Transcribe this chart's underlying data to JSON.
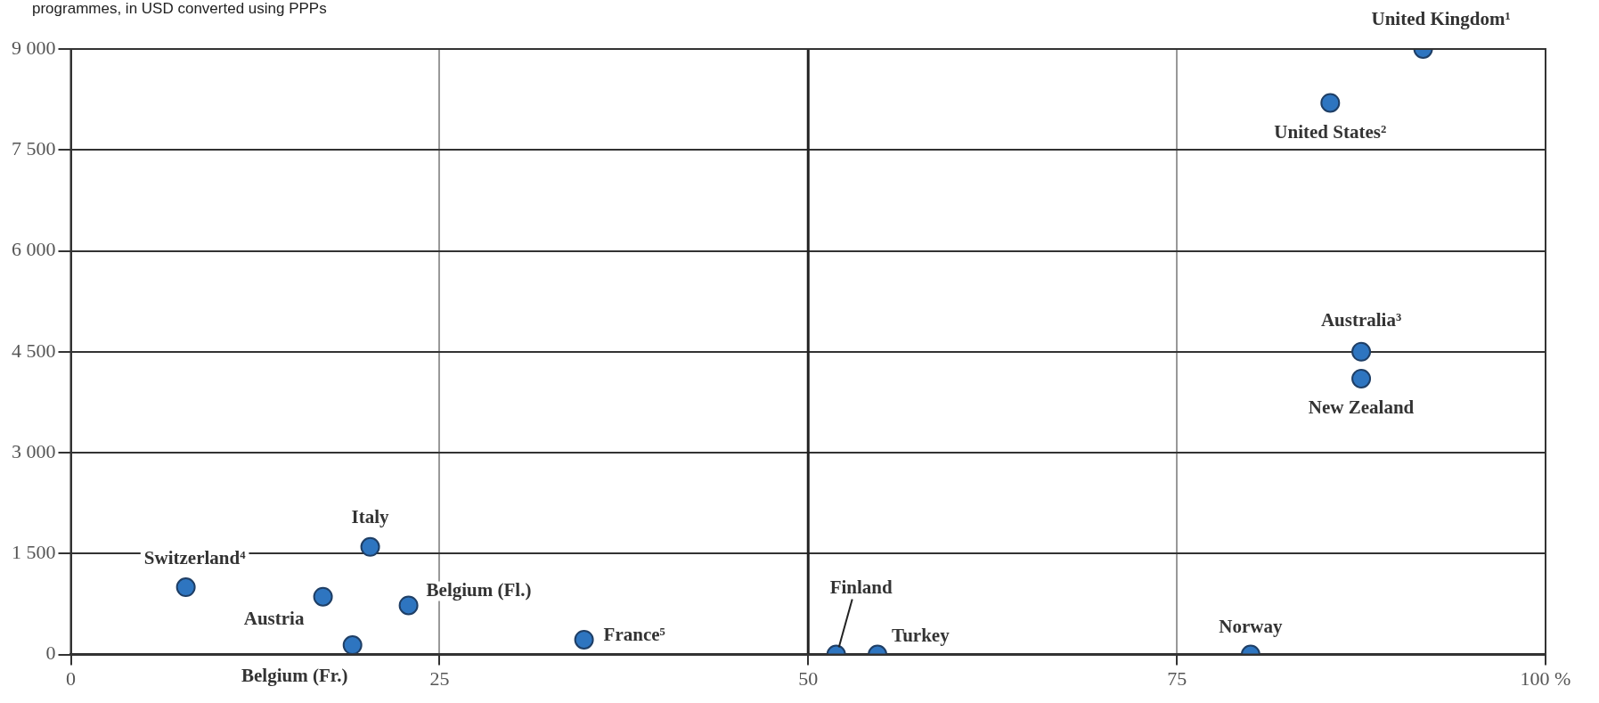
{
  "chart_data": {
    "type": "scatter",
    "title": "programmes, in USD converted using PPPs",
    "x": [
      91.7,
      85.4,
      87.5,
      87.5,
      7.8,
      20.3,
      17.1,
      22.9,
      19.1,
      34.8,
      51.9,
      54.7,
      80.0
    ],
    "values": [
      9000,
      8200,
      4500,
      4100,
      1000,
      1600,
      860,
      730,
      140,
      220,
      0,
      0,
      0
    ],
    "color": "#2e75c0",
    "marker": "circle",
    "xlim": [
      0,
      100
    ],
    "xticks": [
      0,
      25,
      50,
      75,
      {
        "value": 100,
        "label": "100 %"
      }
    ],
    "ylim": [
      0,
      9000
    ],
    "yticks": [
      {
        "value": 0,
        "label": "0"
      },
      {
        "value": 1500,
        "label": "1 500"
      },
      {
        "value": 3000,
        "label": "3 000"
      },
      {
        "value": 4500,
        "label": "4 500"
      },
      {
        "value": 6000,
        "label": "6 000"
      },
      {
        "value": 7500,
        "label": "7 500"
      },
      {
        "value": 9000,
        "label": "9 000"
      }
    ],
    "grid": true,
    "ref_lines": [
      {
        "axis": "x",
        "value": 50,
        "color": "#222222"
      }
    ],
    "annotations": [
      {
        "text": "United Kingdom¹",
        "x": 91.7,
        "y": 9000
      },
      {
        "text": "United States²",
        "x": 85.4,
        "y": 8200
      },
      {
        "text": "Australia³",
        "x": 87.5,
        "y": 4500
      },
      {
        "text": "New Zealand",
        "x": 87.5,
        "y": 4100
      },
      {
        "text": "Switzerland⁴",
        "x": 7.8,
        "y": 1000
      },
      {
        "text": "Italy",
        "x": 20.3,
        "y": 1600
      },
      {
        "text": "Austria",
        "x": 17.1,
        "y": 860
      },
      {
        "text": "Belgium (Fl.)",
        "x": 22.9,
        "y": 730
      },
      {
        "text": "Belgium (Fr.)",
        "x": 19.1,
        "y": 140
      },
      {
        "text": "France⁵",
        "x": 34.8,
        "y": 220
      },
      {
        "text": "Finland",
        "x": 51.9,
        "y": 0
      },
      {
        "text": "Turkey",
        "x": 54.7,
        "y": 0
      },
      {
        "text": "Norway",
        "x": 80.0,
        "y": 0
      }
    ]
  }
}
